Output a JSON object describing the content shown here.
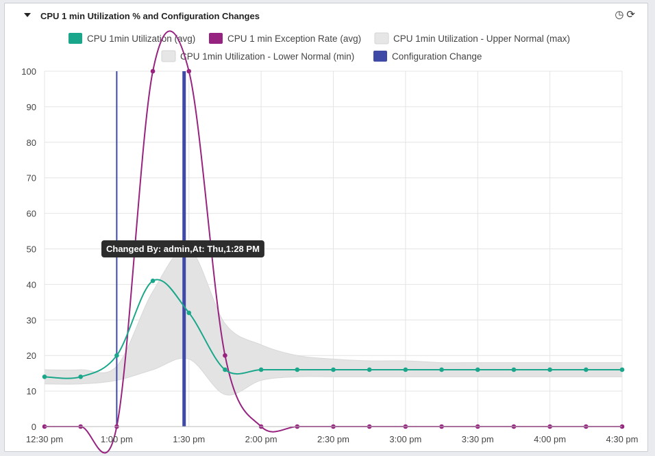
{
  "panel": {
    "title": "CPU 1 min Utilization % and Configuration Changes",
    "icons": [
      "clock-icon",
      "refresh-icon"
    ]
  },
  "chart_data": {
    "type": "line",
    "x": [
      "12:30 pm",
      "12:45 pm",
      "1:00 pm",
      "1:15 pm",
      "1:30 pm",
      "1:45 pm",
      "2:00 pm",
      "2:15 pm",
      "2:30 pm",
      "2:45 pm",
      "3:00 pm",
      "3:15 pm",
      "3:30 pm",
      "3:45 pm",
      "4:00 pm",
      "4:15 pm",
      "4:30 pm"
    ],
    "x_tick_labels": [
      "12:30 pm",
      "1:00 pm",
      "1:30 pm",
      "2:00 pm",
      "2:30 pm",
      "3:00 pm",
      "3:30 pm",
      "4:00 pm",
      "4:30 pm"
    ],
    "y_tick_labels": [
      "0",
      "10",
      "20",
      "30",
      "40",
      "50",
      "60",
      "70",
      "80",
      "90",
      "100"
    ],
    "ylim": [
      0,
      100
    ],
    "grid": true,
    "legend_position": "top",
    "series": [
      {
        "name": "CPU 1min Utilization (avg)",
        "color": "#1aa68a",
        "marker": "circle",
        "values": [
          14,
          14,
          20,
          41,
          32,
          16,
          16,
          16,
          16,
          16,
          16,
          16,
          16,
          16,
          16,
          16,
          16
        ]
      },
      {
        "name": "CPU 1 min Exception Rate (avg)",
        "color": "#96237f",
        "marker": "circle",
        "values": [
          0,
          0,
          0,
          100,
          100,
          20,
          0,
          0,
          0,
          0,
          0,
          0,
          0,
          0,
          0,
          0,
          0
        ]
      },
      {
        "name": "CPU 1min Utilization - Upper Normal (max)",
        "color": "#e6e6e6",
        "type": "area-upper",
        "values": [
          16,
          16,
          17,
          38,
          50,
          29,
          23,
          20,
          19,
          18.5,
          18.5,
          18,
          18,
          18,
          18,
          18,
          18
        ]
      },
      {
        "name": "CPU 1min Utilization - Lower Normal (min)",
        "color": "#e6e6e6",
        "type": "area-lower",
        "values": [
          12,
          12,
          13,
          16,
          19,
          9,
          13,
          14,
          14,
          14,
          14,
          14,
          14,
          14,
          14,
          14,
          14
        ]
      },
      {
        "name": "Configuration Change",
        "color": "#3f4aa6",
        "type": "vertical-markers",
        "positions": [
          "1:00 pm",
          "1:28 pm"
        ]
      }
    ],
    "tooltip": "Changed By: admin,At: Thu,1:28 PM"
  }
}
